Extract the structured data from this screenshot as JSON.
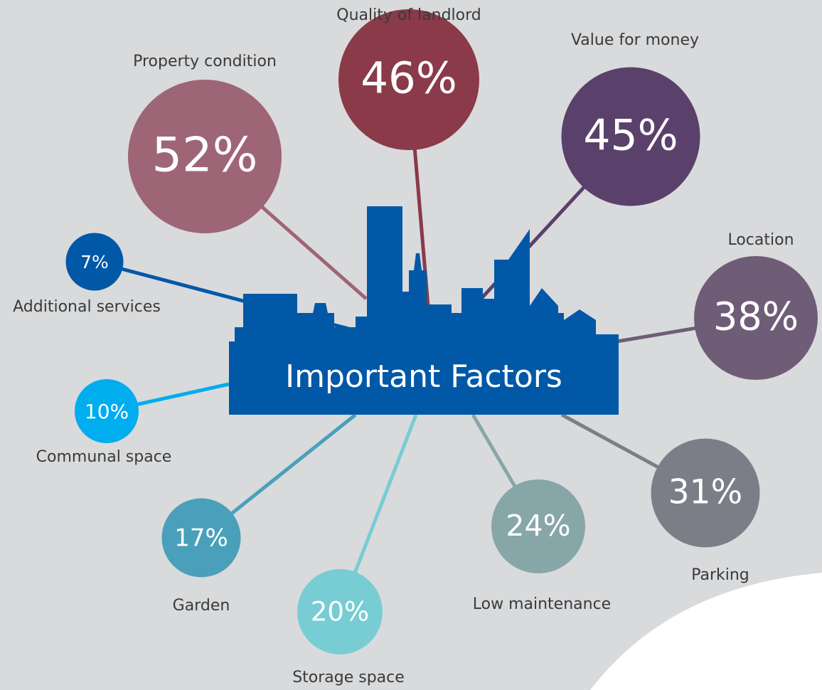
{
  "chart_data": {
    "type": "bubble",
    "title": "Important Factors",
    "categories": [
      "Property condition",
      "Quality of landlord",
      "Value for money",
      "Location",
      "Parking",
      "Low maintenance",
      "Storage space",
      "Garden",
      "Communal space",
      "Additional services"
    ],
    "values": [
      52,
      46,
      45,
      38,
      31,
      24,
      20,
      17,
      10,
      7
    ],
    "value_labels": [
      "52%",
      "46%",
      "45%",
      "38%",
      "31%",
      "24%",
      "20%",
      "17%",
      "10%",
      "7%"
    ],
    "colors": [
      "#9e6577",
      "#8a3a49",
      "#5a416b",
      "#6f5d77",
      "#7c7e87",
      "#87a6a8",
      "#77cdd3",
      "#4aa0ba",
      "#00adee",
      "#0058a7"
    ]
  }
}
